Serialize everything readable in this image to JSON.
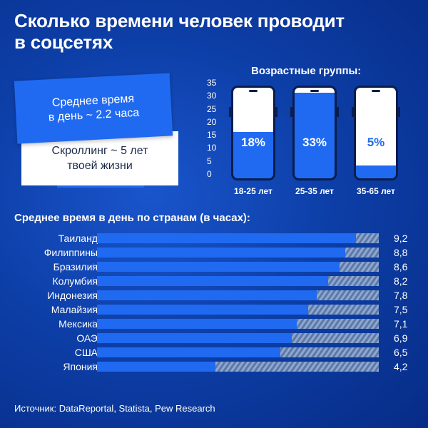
{
  "title": {
    "line1": "Сколько времени человек проводит",
    "line2": "в соцсетях"
  },
  "cards": {
    "blue_line1": "Среднее время",
    "blue_line2": "в день ~ 2.2 часа",
    "white_line1": "Скроллинг ~ 5 лет",
    "white_line2": "твоей жизни"
  },
  "colors": {
    "background": "#0d3fa8",
    "bar": "#1f6af0",
    "phone_frame": "#0a1d4d",
    "hatch": "#8ea7cf"
  },
  "chart_data": [
    {
      "type": "bar",
      "title": "Возрастные группы:",
      "categories": [
        "18-25 лет",
        "25-35 лет",
        "35-65 лет"
      ],
      "values": [
        18,
        33,
        5
      ],
      "value_labels": [
        "18%",
        "33%",
        "5%"
      ],
      "ylim": [
        0,
        35
      ],
      "yticks": [
        0,
        5,
        10,
        15,
        20,
        25,
        30,
        35
      ],
      "grid": false
    },
    {
      "type": "bar",
      "title": "Среднее время в день по странам (в часах):",
      "categories": [
        "Таиланд",
        "Филиппины",
        "Бразилия",
        "Колумбия",
        "Индонезия",
        "Малайзия",
        "Мексика",
        "ОАЭ",
        "США",
        "Япония"
      ],
      "values": [
        9.2,
        8.8,
        8.6,
        8.2,
        7.8,
        7.5,
        7.1,
        6.9,
        6.5,
        4.2
      ],
      "value_labels": [
        "9,2",
        "8,8",
        "8,6",
        "8,2",
        "7,8",
        "7,5",
        "7,1",
        "6,9",
        "6,5",
        "4,2"
      ],
      "xlim": [
        0,
        10
      ],
      "orientation": "horizontal"
    }
  ],
  "source": "Источник: DataReportal, Statista, Pew Research"
}
